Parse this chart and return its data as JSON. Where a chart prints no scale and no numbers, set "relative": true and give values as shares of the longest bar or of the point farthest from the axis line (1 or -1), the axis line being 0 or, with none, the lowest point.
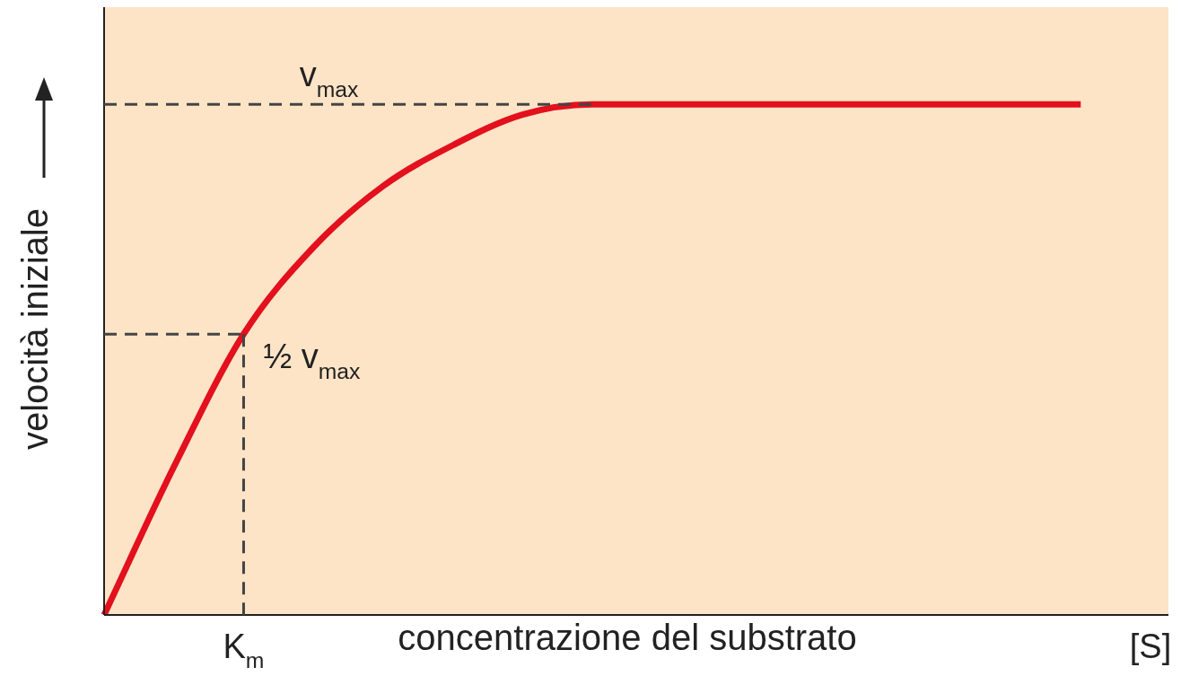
{
  "chart_data": {
    "type": "line",
    "relative": true,
    "xlabel": "concentrazione del substrato",
    "ylabel": "velocità iniziale",
    "categories": [
      null,
      null,
      "K$_{m}$",
      null,
      null,
      null,
      null,
      null,
      null,
      null,
      null,
      null,
      null,
      null,
      null,
      "[S]"
    ],
    "series": [
      {
        "color": "#e3101e",
        "values": [
          0,
          0.29,
          0.55,
          0.72,
          0.84,
          0.92,
          0.98,
          1,
          1,
          1,
          1,
          1,
          1,
          1,
          1,
          null
        ]
      }
    ],
    "ref_lines": [
      {
        "axis": "y",
        "value": 1,
        "label": "v$_{max}$",
        "color": "#444444",
        "line_style": "dashed"
      },
      {
        "axis": "y",
        "value": 0.55,
        "label": "½ v$_{max}$",
        "color": "#444444",
        "line_style": "dashed"
      },
      {
        "axis": "x",
        "value": "K$_{m}$",
        "color": "#444444",
        "line_style": "dashed"
      }
    ],
    "grid": false,
    "legend": false,
    "marker": "none",
    "line_style": "solid"
  }
}
